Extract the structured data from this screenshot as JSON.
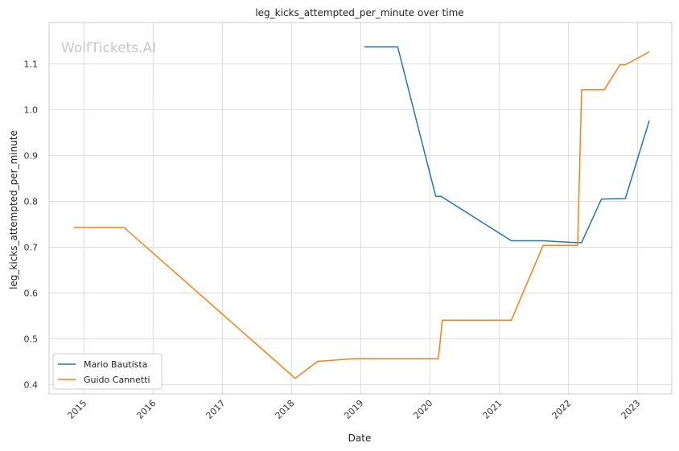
{
  "chart_data": {
    "type": "line",
    "title": "leg_kicks_attempted_per_minute over time",
    "xlabel": "Date",
    "ylabel": "leg_kicks_attempted_per_minute",
    "watermark": "WolfTickets.AI",
    "xlim": [
      "2014-07-01",
      "2023-07-01"
    ],
    "ylim": [
      0.38,
      1.19
    ],
    "x_ticks": [
      "2015",
      "2016",
      "2017",
      "2018",
      "2019",
      "2020",
      "2021",
      "2022",
      "2023"
    ],
    "y_ticks": [
      "0.4",
      "0.5",
      "0.6",
      "0.7",
      "0.8",
      "0.9",
      "1.0",
      "1.1"
    ],
    "grid": true,
    "legend_position": "lower-left",
    "colors": {
      "Mario Bautista": "#1f77b4",
      "Guido Cannetti": "#ff7f0e"
    },
    "series": [
      {
        "name": "Mario Bautista",
        "color": "#1f77b4",
        "x": [
          "2019-01-20",
          "2019-07-15",
          "2020-02-01",
          "2020-02-29",
          "2021-03-06",
          "2021-08-21",
          "2022-02-05",
          "2022-03-12",
          "2022-06-25",
          "2022-10-29",
          "2023-03-04"
        ],
        "y": [
          1.137,
          1.137,
          0.811,
          0.811,
          0.714,
          0.714,
          0.71,
          0.71,
          0.805,
          0.806,
          0.976
        ]
      },
      {
        "name": "Guido Cannetti",
        "color": "#ff7f0e",
        "x": [
          "2014-11-08",
          "2015-08-01",
          "2018-01-20",
          "2018-05-19",
          "2018-11-30",
          "2020-02-15",
          "2020-03-07",
          "2021-03-06",
          "2021-08-21",
          "2022-02-19",
          "2022-03-12",
          "2022-07-09",
          "2022-10-01",
          "2022-10-29",
          "2023-03-04"
        ],
        "y": [
          0.743,
          0.743,
          0.414,
          0.451,
          0.457,
          0.457,
          0.541,
          0.541,
          0.704,
          0.704,
          1.043,
          1.043,
          1.098,
          1.098,
          1.126
        ]
      }
    ]
  }
}
